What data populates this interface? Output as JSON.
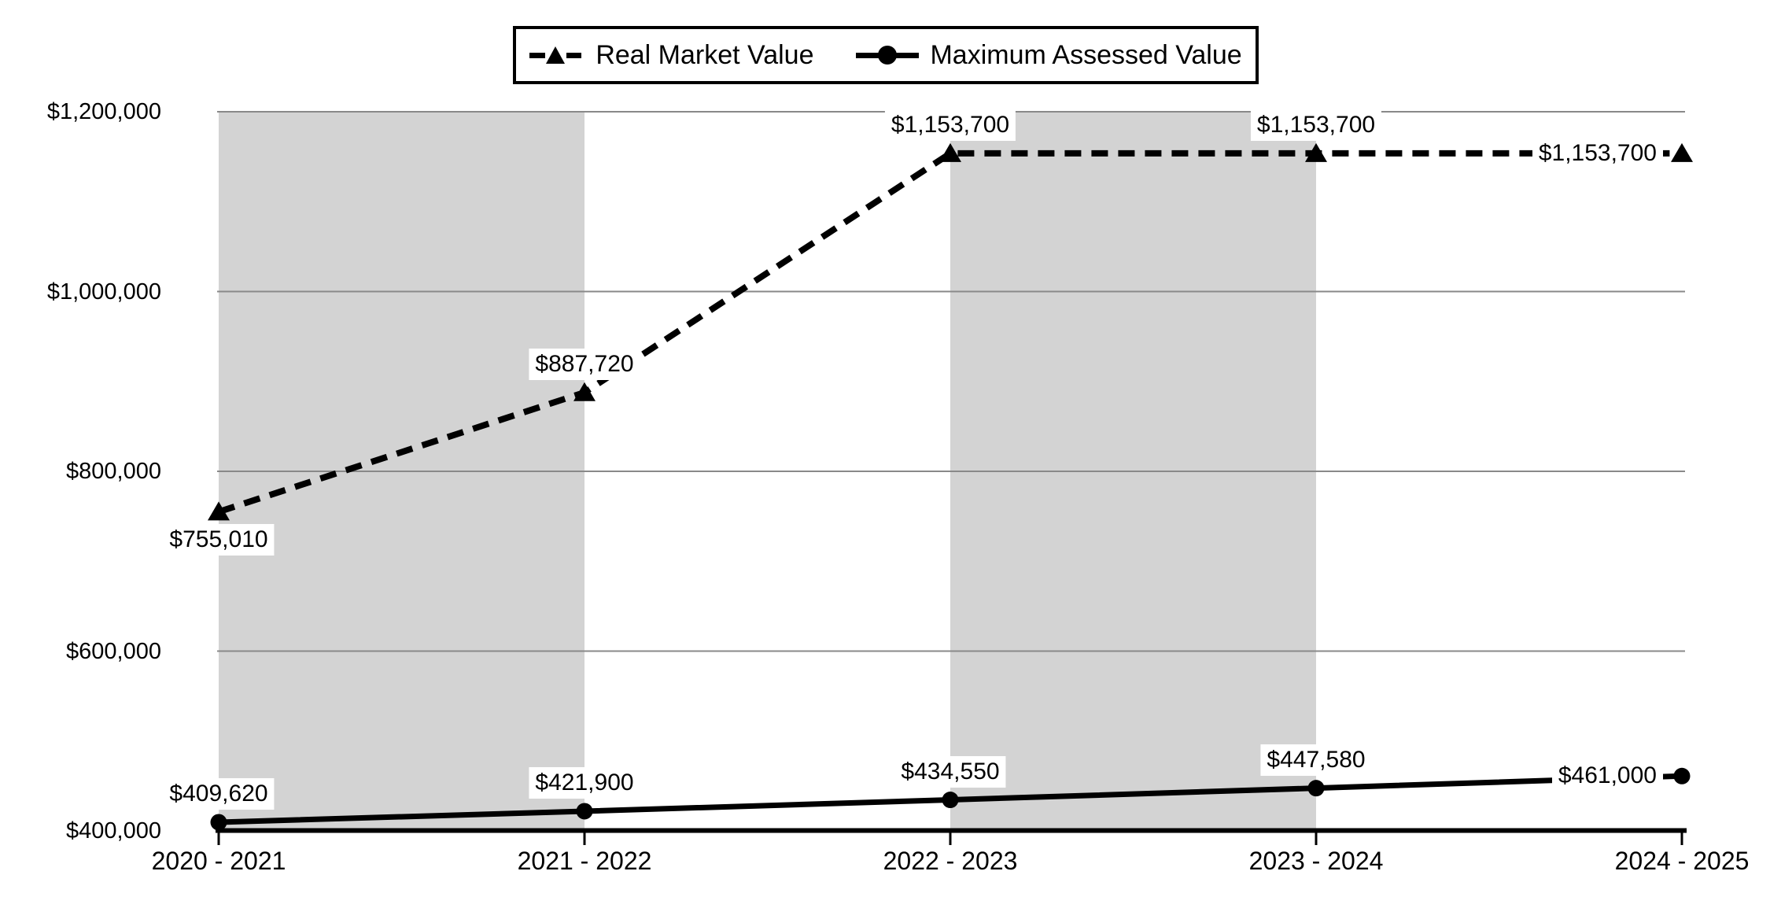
{
  "chart_data": {
    "type": "line",
    "title": "",
    "categories": [
      "2020 - 2021",
      "2021 - 2022",
      "2022 - 2023",
      "2023 - 2024",
      "2024 - 2025"
    ],
    "series": [
      {
        "name": "Real Market Value",
        "values": [
          755010,
          887720,
          1153700,
          1153700,
          1153700
        ],
        "data_labels": [
          "$755,010",
          "$887,720",
          "$1,153,700",
          "$1,153,700",
          "$1,153,700"
        ],
        "label_placement": [
          "below",
          "above",
          "above",
          "above",
          "inline-left"
        ],
        "line_style": "dashed",
        "marker": "triangle",
        "color": "#000000"
      },
      {
        "name": "Maximum Assessed Value",
        "values": [
          409620,
          421900,
          434550,
          447580,
          461000
        ],
        "data_labels": [
          "$409,620",
          "$421,900",
          "$434,550",
          "$447,580",
          "$461,000"
        ],
        "label_placement": [
          "above",
          "above",
          "above",
          "above",
          "inline-left"
        ],
        "line_style": "solid",
        "marker": "circle",
        "color": "#000000"
      }
    ],
    "y_axis": {
      "tick_labels": [
        "$1,200,000",
        "$1,000,000",
        "$800,000",
        "$600,000",
        "$400,000"
      ],
      "tick_values": [
        1200000,
        1000000,
        800000,
        600000,
        400000
      ],
      "min": 400000,
      "max": 1200000
    },
    "grid": "horizontal",
    "legend_position": "top-center",
    "shaded_bands": {
      "category_spans": [
        [
          0,
          1
        ],
        [
          2,
          3
        ]
      ],
      "color": "#d3d3d3"
    },
    "colors": {
      "background": "#ffffff",
      "band": "#d3d3d3",
      "gridline": "#898989",
      "axis": "#000000",
      "text": "#000000",
      "series": "#000000"
    }
  }
}
